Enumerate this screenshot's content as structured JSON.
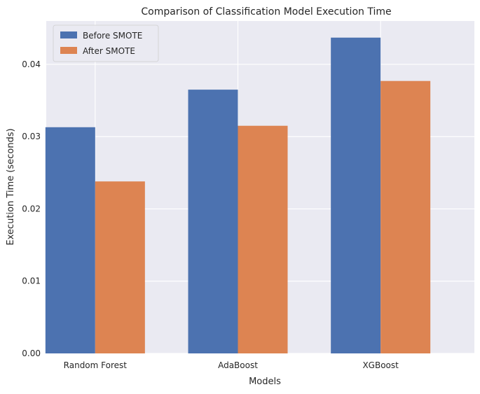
{
  "chart_data": {
    "type": "bar",
    "title": "Comparison of Classification Model Execution Time",
    "xlabel": "Models",
    "ylabel": "Execution Time (seconds)",
    "categories": [
      "Random Forest",
      "AdaBoost",
      "XGBoost"
    ],
    "series": [
      {
        "name": "Before SMOTE",
        "color": "#4c72b0",
        "values": [
          0.0313,
          0.0365,
          0.0437
        ]
      },
      {
        "name": "After SMOTE",
        "color": "#dd8452",
        "values": [
          0.0238,
          0.0315,
          0.0377
        ]
      }
    ],
    "ylim": [
      0,
      0.046
    ],
    "yticks": [
      0.0,
      0.01,
      0.02,
      0.03,
      0.04
    ],
    "ytick_labels": [
      "0.00",
      "0.01",
      "0.02",
      "0.03",
      "0.04"
    ],
    "grid": true,
    "legend_position": "top-left",
    "background_color": "#eaeaf2",
    "grid_color": "#ffffff"
  }
}
